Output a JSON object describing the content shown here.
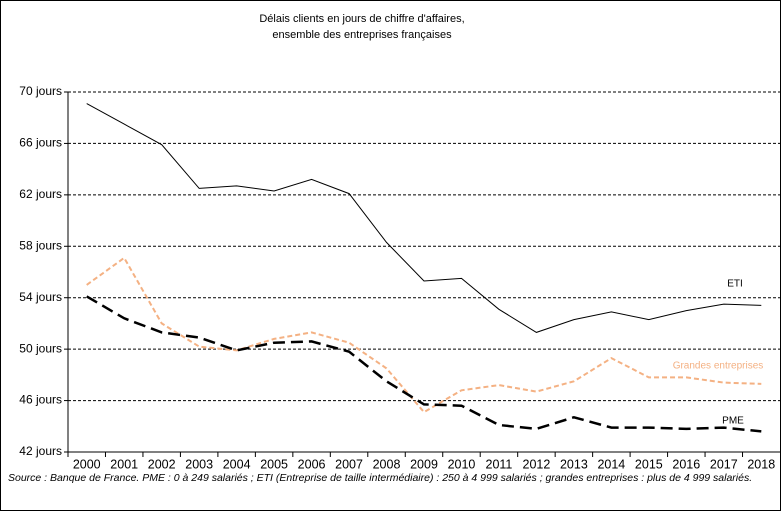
{
  "chart_data": {
    "type": "line",
    "title": [
      "Délais clients en jours de chiffre d'affaires,",
      "ensemble des entreprises françaises"
    ],
    "source": "Source : Banque de France. PME : 0 à 249 salariés ; ETI (Entreprise de taille intermédiaire) : 250 à 4 999 salariés ; grandes entreprises : plus de 4 999 salariés.",
    "categories": [
      "2000",
      "2001",
      "2002",
      "2003",
      "2004",
      "2005",
      "2006",
      "2007",
      "2008",
      "2009",
      "2010",
      "2011",
      "2012",
      "2013",
      "2014",
      "2015",
      "2016",
      "2017",
      "2018"
    ],
    "series": [
      {
        "name": "ETI",
        "color": "#000000",
        "line_style": "solid",
        "width": 1,
        "values": [
          69.1,
          67.5,
          65.9,
          62.5,
          62.7,
          62.3,
          63.2,
          62.1,
          58.3,
          55.3,
          55.5,
          53.1,
          51.3,
          52.3,
          52.9,
          52.3,
          53.0,
          53.5,
          53.4
        ]
      },
      {
        "name": "Grandes entreprises",
        "color": "#f4b183",
        "line_style": "dashed",
        "width": 2,
        "values": [
          55.0,
          57.1,
          52.0,
          50.2,
          49.9,
          50.8,
          51.3,
          50.5,
          48.5,
          45.1,
          46.8,
          47.2,
          46.7,
          47.5,
          49.3,
          47.8,
          47.8,
          47.4,
          47.3
        ]
      },
      {
        "name": "PME",
        "color": "#000000",
        "line_style": "long-dashed",
        "width": 2.5,
        "values": [
          54.1,
          52.4,
          51.3,
          50.9,
          49.9,
          50.5,
          50.6,
          49.8,
          47.5,
          45.7,
          45.6,
          44.1,
          43.8,
          44.7,
          43.9,
          43.9,
          43.8,
          43.9,
          43.6
        ]
      }
    ],
    "ylim": [
      42,
      70
    ],
    "yticks": [
      {
        "value": 42,
        "label": "42 jours"
      },
      {
        "value": 46,
        "label": "46 jours"
      },
      {
        "value": 50,
        "label": "50 jours"
      },
      {
        "value": 54,
        "label": "54 jours"
      },
      {
        "value": 58,
        "label": "58 jours"
      },
      {
        "value": 62,
        "label": "62 jours"
      },
      {
        "value": 66,
        "label": "66 jours"
      },
      {
        "value": 70,
        "label": "70 jours"
      }
    ],
    "grid": true
  }
}
